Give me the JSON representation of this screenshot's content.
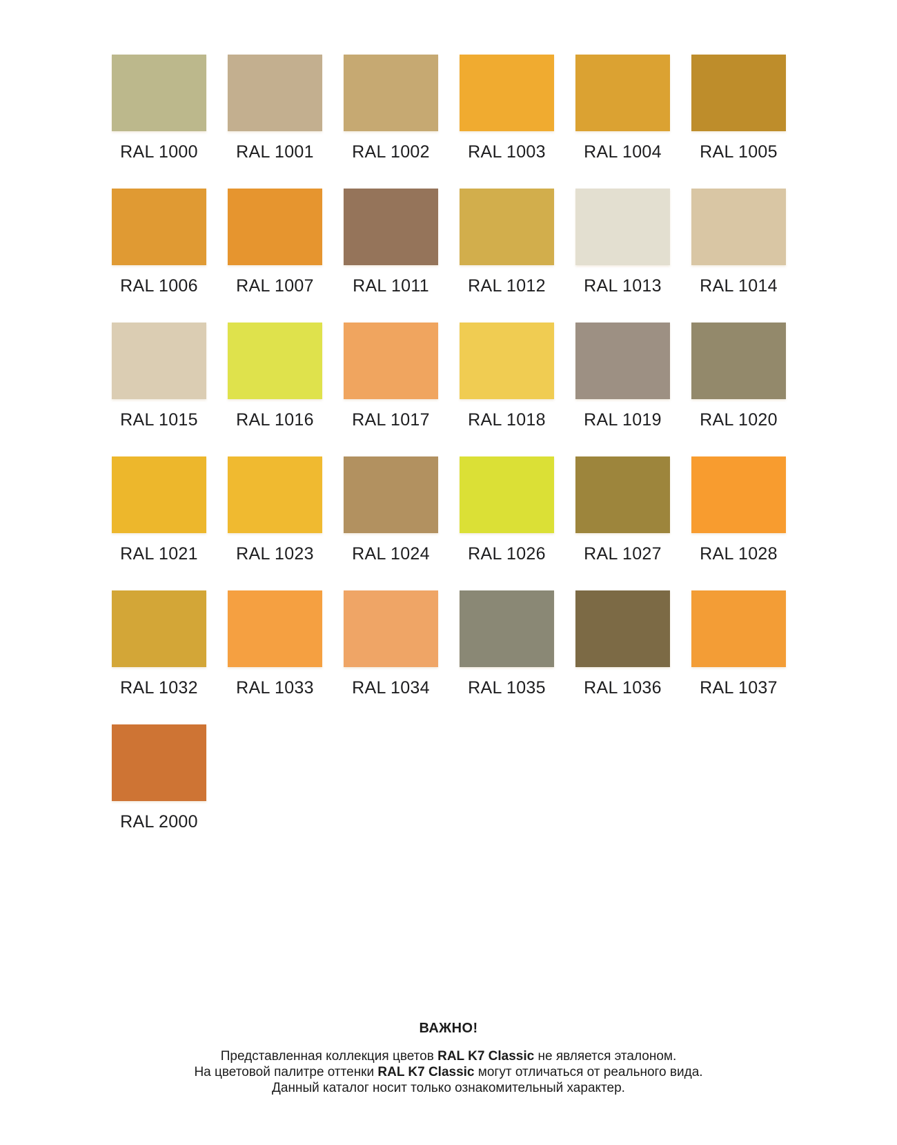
{
  "page": {
    "background": "#ffffff",
    "text_color": "#1b1b1b"
  },
  "palette": {
    "name": "RAL K7 Classic",
    "swatches": [
      {
        "code": "RAL 1000",
        "color": "#BCB88C"
      },
      {
        "code": "RAL 1001",
        "color": "#C3AF8F"
      },
      {
        "code": "RAL 1002",
        "color": "#C6A972"
      },
      {
        "code": "RAL 1003",
        "color": "#F0AB30"
      },
      {
        "code": "RAL 1004",
        "color": "#DBA232"
      },
      {
        "code": "RAL 1005",
        "color": "#BE8D2B"
      },
      {
        "code": "RAL 1006",
        "color": "#E09A33"
      },
      {
        "code": "RAL 1007",
        "color": "#E6952F"
      },
      {
        "code": "RAL 1011",
        "color": "#95745A"
      },
      {
        "code": "RAL 1012",
        "color": "#D2AE4C"
      },
      {
        "code": "RAL 1013",
        "color": "#E3DFD0"
      },
      {
        "code": "RAL 1014",
        "color": "#D9C6A4"
      },
      {
        "code": "RAL 1015",
        "color": "#DBCDB3"
      },
      {
        "code": "RAL 1016",
        "color": "#DFE24C"
      },
      {
        "code": "RAL 1017",
        "color": "#F0A55F"
      },
      {
        "code": "RAL 1018",
        "color": "#F0CC52"
      },
      {
        "code": "RAL 1019",
        "color": "#9D9083"
      },
      {
        "code": "RAL 1020",
        "color": "#93896B"
      },
      {
        "code": "RAL 1021",
        "color": "#EDB72C"
      },
      {
        "code": "RAL 1023",
        "color": "#F0BA30"
      },
      {
        "code": "RAL 1024",
        "color": "#B29160"
      },
      {
        "code": "RAL 1026",
        "color": "#DBE036"
      },
      {
        "code": "RAL 1027",
        "color": "#9D853C"
      },
      {
        "code": "RAL 1028",
        "color": "#F89C2F"
      },
      {
        "code": "RAL 1032",
        "color": "#D3A637"
      },
      {
        "code": "RAL 1033",
        "color": "#F5A041"
      },
      {
        "code": "RAL 1034",
        "color": "#EFA566"
      },
      {
        "code": "RAL 1035",
        "color": "#8A8875"
      },
      {
        "code": "RAL 1036",
        "color": "#7C6A45"
      },
      {
        "code": "RAL 1037",
        "color": "#F39D36"
      },
      {
        "code": "RAL 2000",
        "color": "#CE7434"
      }
    ]
  },
  "footer": {
    "heading": "ВАЖНО!",
    "lines": [
      {
        "pre": "Представленная коллекция цветов ",
        "brand": "RAL K7 Classic",
        "post": " не является эталоном."
      },
      {
        "pre": "На цветовой палитре оттенки ",
        "brand": "RAL K7 Classic",
        "post": " могут отличаться от реального вида."
      },
      {
        "pre": "Данный каталог носит только ознакомительный характер.",
        "brand": "",
        "post": ""
      }
    ]
  }
}
